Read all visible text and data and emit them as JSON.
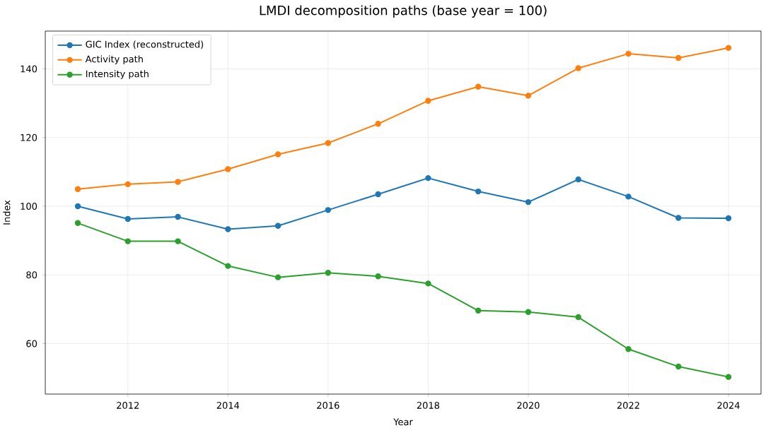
{
  "chart_data": {
    "type": "line",
    "title": "LMDI decomposition paths (base year = 100)",
    "xlabel": "Year",
    "ylabel": "Index",
    "x": [
      2011,
      2012,
      2013,
      2014,
      2015,
      2016,
      2017,
      2018,
      2019,
      2020,
      2021,
      2022,
      2023,
      2024
    ],
    "series": [
      {
        "name": "GIC Index (reconstructed)",
        "color": "#1f77b4",
        "values": [
          100,
          96.3,
          96.9,
          93.3,
          94.3,
          98.9,
          103.5,
          108.2,
          104.3,
          101.2,
          107.8,
          102.8,
          96.6,
          96.5
        ]
      },
      {
        "name": "Activity path",
        "color": "#ff7f0e",
        "values": [
          105,
          106.4,
          107.1,
          110.8,
          115.1,
          118.4,
          124,
          130.7,
          134.8,
          132.2,
          140.2,
          144.4,
          143.2,
          146.1
        ]
      },
      {
        "name": "Intensity path",
        "color": "#2ca02c",
        "values": [
          95.1,
          89.8,
          89.8,
          82.6,
          79.3,
          80.6,
          79.6,
          77.5,
          69.6,
          69.2,
          67.7,
          58.4,
          53.3,
          50.3
        ]
      }
    ],
    "xlim": [
      2010.35,
      2024.65
    ],
    "ylim": [
      45.3,
      151
    ],
    "xticks": [
      2012,
      2014,
      2016,
      2018,
      2020,
      2022,
      2024
    ],
    "yticks": [
      60,
      80,
      100,
      120,
      140
    ],
    "grid": true,
    "legend": "top left",
    "marker": "circle",
    "line_style": "solid"
  }
}
